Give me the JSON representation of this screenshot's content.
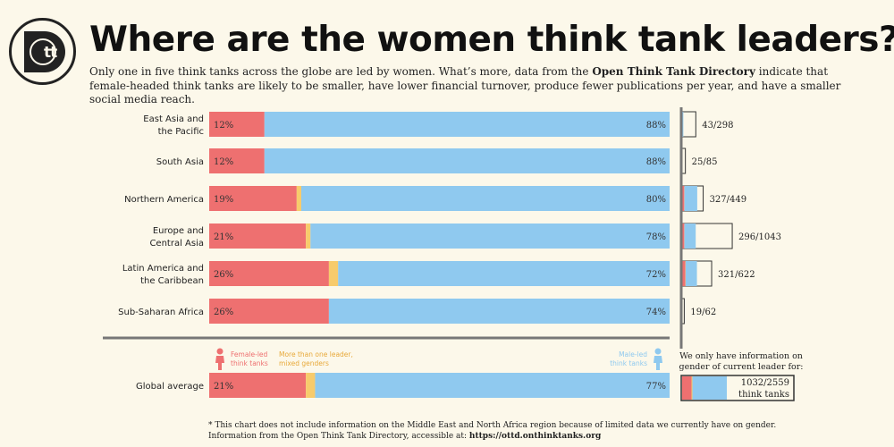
{
  "title": "Where are the women think tank leaders?",
  "subtitle": {
    "part1": "Only one in five think tanks across the globe are led by women. What’s more, data from the ",
    "bold": "Open Think Tank Directory",
    "part2": " indicate that female-headed think tanks are likely to be smaller, have lower financial turnover, produce fewer publications per year, and have a smaller social media reach."
  },
  "logo_text": "tt",
  "colors": {
    "female": "#ee7070",
    "mixed": "#f7cb6c",
    "male": "#8fc9ef",
    "background": "#fcf8ea",
    "divider": "#777777"
  },
  "chart_data": {
    "type": "bar",
    "orientation": "horizontal",
    "stacked": true,
    "categories": [
      "East Asia and the Pacific",
      "South Asia",
      "Northern America",
      "Europe and Central Asia",
      "Latin America and the Caribbean",
      "Sub-Saharan Africa"
    ],
    "series": [
      {
        "name": "Female-led think tanks",
        "values": [
          12,
          12,
          19,
          21,
          26,
          26
        ]
      },
      {
        "name": "More than one leader, mixed genders",
        "values": [
          0,
          0,
          1,
          1,
          2,
          0
        ]
      },
      {
        "name": "Male-led think tanks",
        "values": [
          88,
          88,
          80,
          78,
          72,
          74
        ]
      }
    ],
    "labels_female": [
      "12%",
      "12%",
      "19%",
      "21%",
      "26%",
      "26%"
    ],
    "labels_male": [
      "88%",
      "88%",
      "80%",
      "78%",
      "72%",
      "74%"
    ],
    "coverage": [
      {
        "known": 43,
        "total": 298,
        "label": "43/298"
      },
      {
        "known": 25,
        "total": 85,
        "label": "25/85"
      },
      {
        "known": 327,
        "total": 449,
        "label": "327/449"
      },
      {
        "known": 296,
        "total": 1043,
        "label": "296/1043"
      },
      {
        "known": 321,
        "total": 622,
        "label": "321/622"
      },
      {
        "known": 19,
        "total": 62,
        "label": "19/62"
      }
    ],
    "global": {
      "label": "Global average",
      "female": 21,
      "mixed": 2,
      "male": 77,
      "label_female": "21%",
      "label_male": "77%",
      "coverage": {
        "known": 1032,
        "total": 2559,
        "label": "1032/2559",
        "unit": "think tanks"
      },
      "coverage_note_line1": "We only have information on",
      "coverage_note_line2": "gender of current leader for:"
    },
    "legend": {
      "female_line1": "Female-led",
      "female_line2": "think tanks",
      "mixed_line1": "More than one leader,",
      "mixed_line2": "mixed genders",
      "male_line1": "Male-led",
      "male_line2": "think tanks"
    },
    "xlim": [
      0,
      100
    ]
  },
  "footnote": {
    "line1": "* This chart does not include information on the Middle East and North Africa region because of limited data we currently have on gender.",
    "line2_prefix": "Information from the Open Think Tank Directory, accessible at: ",
    "url": "https://ottd.onthinktanks.org"
  }
}
